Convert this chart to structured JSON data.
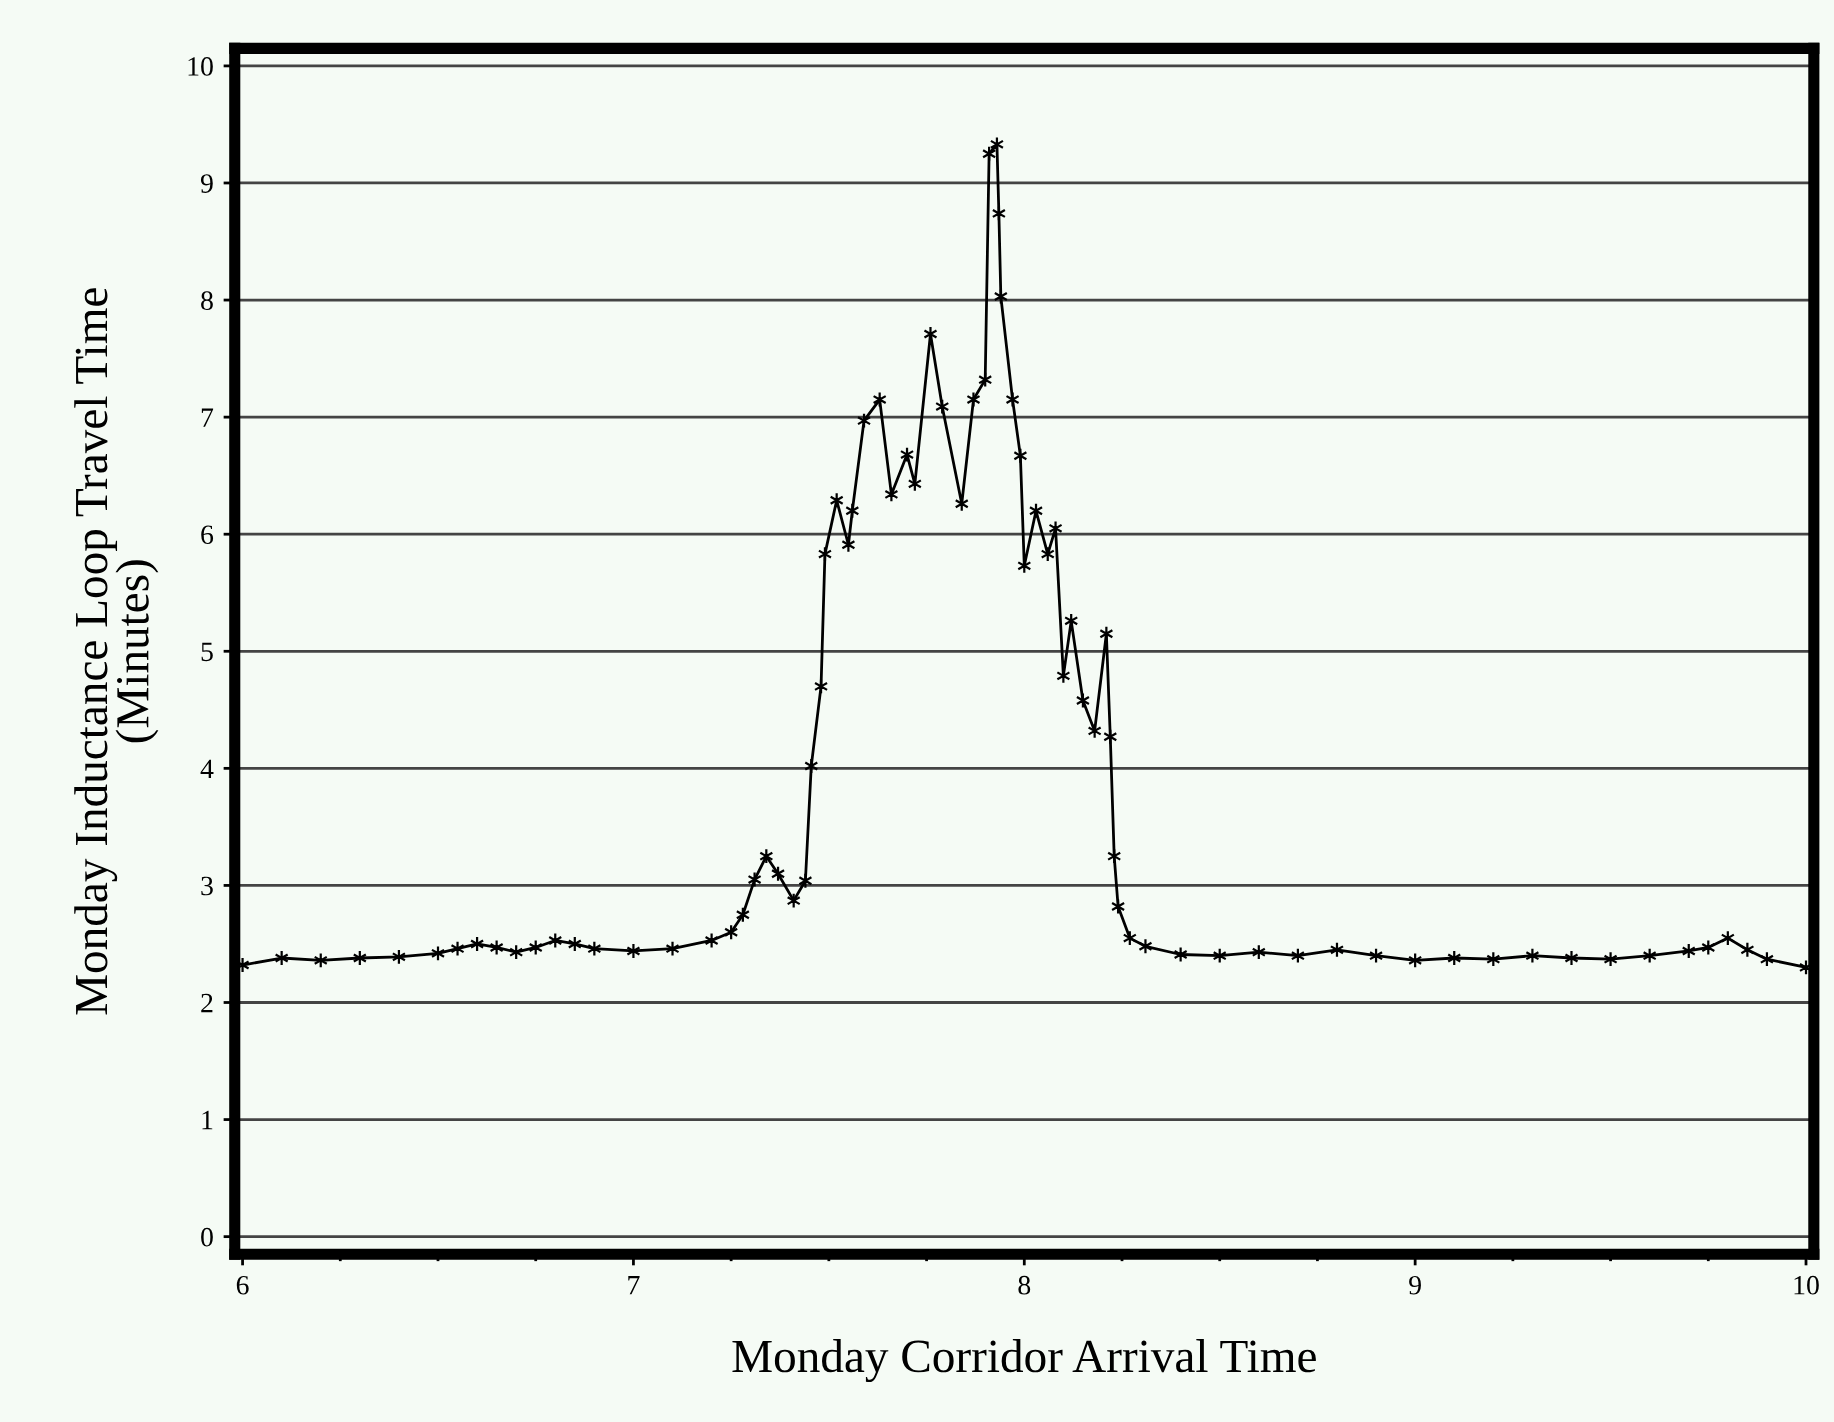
{
  "chart_data": {
    "type": "line",
    "xlabel": "Monday Corridor Arrival Time",
    "ylabel": "Monday Inductance Loop Travel Time\n(Minutes)",
    "x": [
      6.0,
      6.1,
      6.2,
      6.3,
      6.4,
      6.5,
      6.55,
      6.6,
      6.65,
      6.7,
      6.75,
      6.8,
      6.85,
      6.9,
      7.0,
      7.1,
      7.2,
      7.25,
      7.28,
      7.31,
      7.34,
      7.37,
      7.41,
      7.44,
      7.455,
      7.48,
      7.49,
      7.52,
      7.55,
      7.56,
      7.59,
      7.63,
      7.66,
      7.7,
      7.72,
      7.76,
      7.79,
      7.84,
      7.87,
      7.9,
      7.91,
      7.93,
      7.935,
      7.94,
      7.97,
      7.99,
      8.0,
      8.03,
      8.06,
      8.08,
      8.1,
      8.12,
      8.15,
      8.18,
      8.21,
      8.22,
      8.23,
      8.24,
      8.27,
      8.31,
      8.4,
      8.5,
      8.6,
      8.7,
      8.8,
      8.9,
      9.0,
      9.1,
      9.2,
      9.3,
      9.4,
      9.5,
      9.6,
      9.7,
      9.75,
      9.8,
      9.85,
      9.9,
      10.0
    ],
    "series": [
      {
        "color": "#000000",
        "values": [
          2.32,
          2.38,
          2.36,
          2.38,
          2.39,
          2.42,
          2.46,
          2.5,
          2.47,
          2.43,
          2.47,
          2.53,
          2.5,
          2.46,
          2.44,
          2.46,
          2.53,
          2.6,
          2.75,
          3.05,
          3.25,
          3.1,
          2.87,
          3.04,
          4.02,
          4.7,
          5.83,
          6.29,
          5.91,
          6.2,
          6.97,
          7.15,
          6.34,
          6.68,
          6.43,
          7.71,
          7.09,
          6.26,
          7.15,
          7.32,
          9.25,
          9.33,
          8.74,
          8.03,
          7.15,
          6.67,
          5.73,
          6.2,
          5.83,
          6.05,
          4.79,
          5.26,
          4.58,
          4.32,
          5.15,
          4.27,
          3.25,
          2.82,
          2.55,
          2.48,
          2.41,
          2.4,
          2.43,
          2.4,
          2.45,
          2.4,
          2.36,
          2.38,
          2.37,
          2.4,
          2.38,
          2.37,
          2.4,
          2.44,
          2.47,
          2.55,
          2.45,
          2.37,
          2.3
        ]
      }
    ],
    "xlim": [
      5.98,
      10.02
    ],
    "ylim": [
      -0.15,
      10.15
    ],
    "xticks": [
      6,
      {
        "value": 6.25,
        "label": null
      },
      {
        "value": 6.5,
        "label": null
      },
      {
        "value": 6.75,
        "label": null
      },
      7,
      {
        "value": 7.25,
        "label": null
      },
      {
        "value": 7.5,
        "label": null
      },
      {
        "value": 7.75,
        "label": null
      },
      8,
      {
        "value": 8.25,
        "label": null
      },
      {
        "value": 8.5,
        "label": null
      },
      {
        "value": 8.75,
        "label": null
      },
      9,
      {
        "value": 9.25,
        "label": null
      },
      {
        "value": 9.5,
        "label": null
      },
      {
        "value": 9.75,
        "label": null
      },
      10
    ],
    "yticks": [
      0,
      1,
      2,
      3,
      4,
      5,
      6,
      7,
      8,
      9,
      10
    ],
    "grid": "y",
    "marker": "cross",
    "line_style": "solid"
  }
}
